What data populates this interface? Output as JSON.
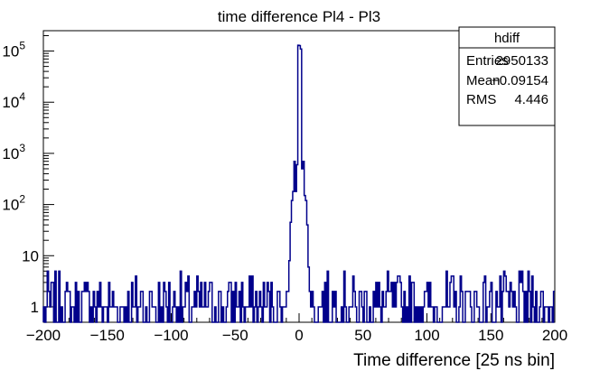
{
  "chart_data": {
    "type": "histogram",
    "title": "time difference Pl4 - Pl3",
    "xlabel": "Time difference [25 ns bin]",
    "ylabel": "",
    "xlim": [
      -200,
      200
    ],
    "ylim": [
      0.5,
      250000
    ],
    "yscale": "log",
    "grid": false,
    "line_color": "#00008b",
    "x_ticks": [
      {
        "value": -200,
        "label": "−200"
      },
      {
        "value": -150,
        "label": "−150"
      },
      {
        "value": -100,
        "label": "−100"
      },
      {
        "value": -50,
        "label": "−50"
      },
      {
        "value": 0,
        "label": "0"
      },
      {
        "value": 50,
        "label": "50"
      },
      {
        "value": 100,
        "label": "100"
      },
      {
        "value": 150,
        "label": "150"
      },
      {
        "value": 200,
        "label": "200"
      }
    ],
    "y_ticks": [
      {
        "value": 1,
        "base": "1",
        "exp": ""
      },
      {
        "value": 10,
        "base": "10",
        "exp": ""
      },
      {
        "value": 100,
        "base": "10",
        "exp": "2"
      },
      {
        "value": 1000,
        "base": "10",
        "exp": "3"
      },
      {
        "value": 10000,
        "base": "10",
        "exp": "4"
      },
      {
        "value": 100000,
        "base": "10",
        "exp": "5"
      }
    ],
    "stats_box": {
      "name": "hdiff",
      "rows": [
        {
          "label": "Entries",
          "value": "2950133"
        },
        {
          "label": "Mean",
          "value": "−0.09154"
        },
        {
          "label": "RMS",
          "value": "4.446"
        }
      ]
    },
    "peak_bins": [
      {
        "x": -12,
        "y": 1
      },
      {
        "x": -11,
        "y": 1
      },
      {
        "x": -10,
        "y": 2
      },
      {
        "x": -9,
        "y": 2
      },
      {
        "x": -8,
        "y": 8
      },
      {
        "x": -7,
        "y": 45
      },
      {
        "x": -6,
        "y": 120
      },
      {
        "x": -5,
        "y": 180
      },
      {
        "x": -4,
        "y": 700
      },
      {
        "x": -3,
        "y": 180
      },
      {
        "x": -2,
        "y": 600
      },
      {
        "x": -1,
        "y": 130000
      },
      {
        "x": 0,
        "y": 128000
      },
      {
        "x": 1,
        "y": 110000
      },
      {
        "x": 2,
        "y": 500
      },
      {
        "x": 3,
        "y": 700
      },
      {
        "x": 4,
        "y": 150
      },
      {
        "x": 5,
        "y": 120
      },
      {
        "x": 6,
        "y": 40
      },
      {
        "x": 7,
        "y": 6
      },
      {
        "x": 8,
        "y": 2
      },
      {
        "x": 9,
        "y": 1
      }
    ],
    "background_counts": {
      "range": [
        -200,
        200
      ],
      "levels": [
        0,
        1,
        2,
        3,
        4,
        5
      ]
    }
  }
}
